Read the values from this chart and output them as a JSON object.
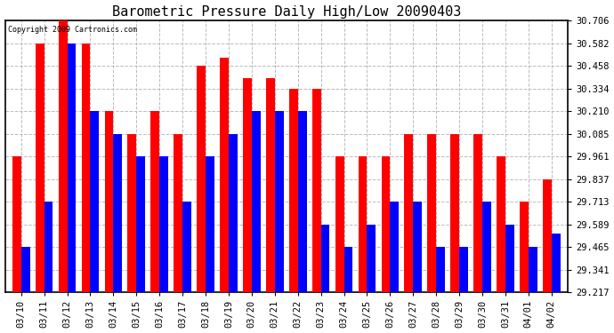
{
  "title": "Barometric Pressure Daily High/Low 20090403",
  "copyright": "Copyright 2009 Cartronics.com",
  "categories": [
    "03/10",
    "03/11",
    "03/12",
    "03/13",
    "03/14",
    "03/15",
    "03/16",
    "03/17",
    "03/18",
    "03/19",
    "03/20",
    "03/21",
    "03/22",
    "03/23",
    "03/24",
    "03/25",
    "03/26",
    "03/27",
    "03/28",
    "03/29",
    "03/30",
    "03/31",
    "04/01",
    "04/02"
  ],
  "highs": [
    29.961,
    30.582,
    30.706,
    30.582,
    30.21,
    30.085,
    30.21,
    30.085,
    30.458,
    30.5,
    30.39,
    30.39,
    30.334,
    30.334,
    29.961,
    29.961,
    29.961,
    30.085,
    30.085,
    30.085,
    30.085,
    29.961,
    29.713,
    29.837
  ],
  "lows": [
    29.465,
    29.713,
    30.582,
    30.21,
    30.085,
    29.961,
    29.961,
    29.713,
    29.961,
    30.085,
    30.21,
    30.21,
    30.21,
    29.589,
    29.465,
    29.589,
    29.713,
    29.713,
    29.465,
    29.465,
    29.713,
    29.589,
    29.465,
    29.541
  ],
  "high_color": "#ff0000",
  "low_color": "#0000ff",
  "background_color": "#ffffff",
  "plot_bg_color": "#ffffff",
  "grid_color": "#bbbbbb",
  "ymin": 29.217,
  "ymax": 30.706,
  "yticks": [
    29.217,
    29.341,
    29.465,
    29.589,
    29.713,
    29.837,
    29.961,
    30.085,
    30.21,
    30.334,
    30.458,
    30.582,
    30.706
  ],
  "bar_width": 0.38,
  "title_fontsize": 11,
  "tick_fontsize": 7.5
}
